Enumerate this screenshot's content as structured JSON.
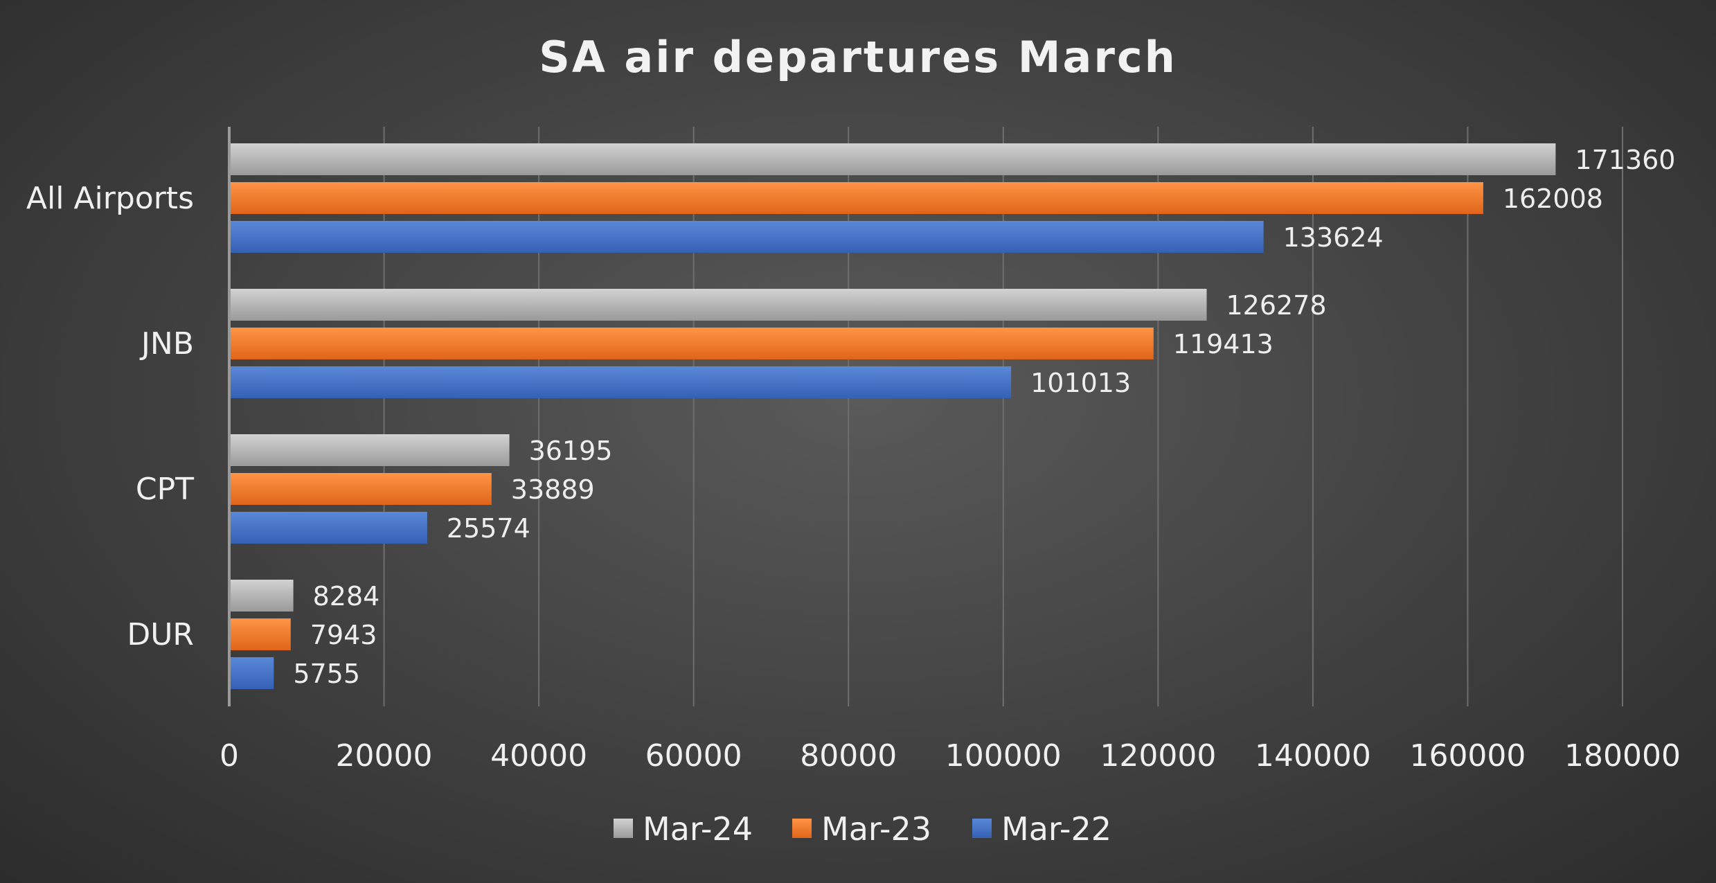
{
  "chart_data": {
    "type": "bar",
    "orientation": "horizontal",
    "title": "SA air departures March",
    "categories": [
      "All Airports",
      "JNB",
      "CPT",
      "DUR"
    ],
    "series": [
      {
        "name": "Mar-24",
        "color": "#b8b8b8",
        "values": [
          171360,
          126278,
          36195,
          8284
        ]
      },
      {
        "name": "Mar-23",
        "color": "#f07a2a",
        "values": [
          162008,
          119413,
          33889,
          7943
        ]
      },
      {
        "name": "Mar-22",
        "color": "#4472c4",
        "values": [
          133624,
          101013,
          25574,
          5755
        ]
      }
    ],
    "x_ticks": [
      "0",
      "20000",
      "40000",
      "60000",
      "80000",
      "100000",
      "120000",
      "140000",
      "160000",
      "180000"
    ],
    "xlim": [
      0,
      180000
    ],
    "grid": "vertical",
    "legend_position": "bottom",
    "data_labels": true
  }
}
